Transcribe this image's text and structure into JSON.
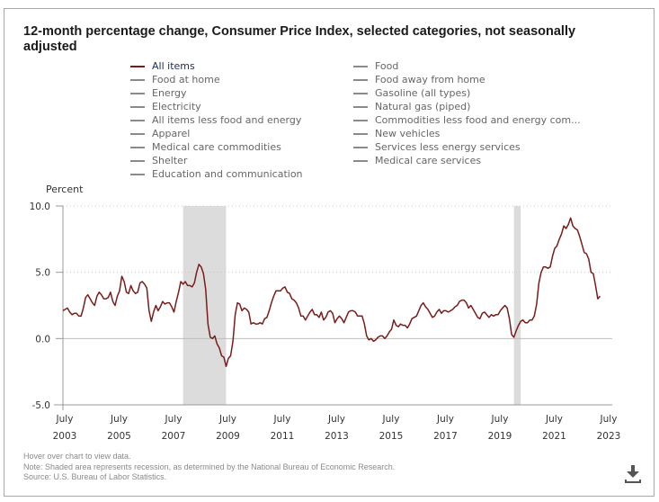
{
  "title": "12-month percentage change, Consumer Price Index, selected categories, not seasonally adjusted",
  "legend": {
    "left": [
      {
        "label": "All items",
        "active": true
      },
      {
        "label": "Food at home",
        "active": false
      },
      {
        "label": "Energy",
        "active": false
      },
      {
        "label": "Electricity",
        "active": false
      },
      {
        "label": "All items less food and energy",
        "active": false
      },
      {
        "label": "Apparel",
        "active": false
      },
      {
        "label": "Medical care commodities",
        "active": false
      },
      {
        "label": "Shelter",
        "active": false
      },
      {
        "label": "Education and communication",
        "active": false
      }
    ],
    "right": [
      {
        "label": "Food",
        "active": false
      },
      {
        "label": "Food away from home",
        "active": false
      },
      {
        "label": "Gasoline (all types)",
        "active": false
      },
      {
        "label": "Natural gas (piped)",
        "active": false
      },
      {
        "label": "Commodities less food and energy com...",
        "active": false
      },
      {
        "label": "New vehicles",
        "active": false
      },
      {
        "label": "Services less energy services",
        "active": false
      },
      {
        "label": "Medical care services",
        "active": false
      }
    ]
  },
  "footer": {
    "hover_note": "Hover over chart to view data.",
    "recession_note": "Note: Shaded area represents recession, as determined by the National Bureau of Economic Research.",
    "source": "Source: U.S. Bureau of Labor Statistics."
  },
  "download_icon": "download-icon",
  "colors": {
    "series": "#7a1c1c",
    "recession": "#dcdcdc",
    "legend_inactive": "#8a8a8a"
  },
  "chart_data": {
    "type": "line",
    "title": "12-month percentage change, Consumer Price Index, selected categories, not seasonally adjusted",
    "ylabel": "Percent",
    "xlabel": "",
    "ylim": [
      -5.0,
      10.0
    ],
    "yticks": [
      "10.0",
      "5.0",
      "0.0",
      "-5.0"
    ],
    "ytick_values": [
      10,
      5,
      0,
      -5
    ],
    "xticks": [
      {
        "month": "July",
        "year": "2003"
      },
      {
        "month": "July",
        "year": "2005"
      },
      {
        "month": "July",
        "year": "2007"
      },
      {
        "month": "July",
        "year": "2009"
      },
      {
        "month": "July",
        "year": "2011"
      },
      {
        "month": "July",
        "year": "2013"
      },
      {
        "month": "July",
        "year": "2015"
      },
      {
        "month": "July",
        "year": "2017"
      },
      {
        "month": "July",
        "year": "2019"
      },
      {
        "month": "July",
        "year": "2021"
      },
      {
        "month": "July",
        "year": "2023"
      }
    ],
    "x_start": "2003-07",
    "x_end": "2023-07",
    "grid": "horizontal dotted",
    "legend_position": "top",
    "recessions": [
      {
        "start": "2007-12",
        "end": "2009-06"
      },
      {
        "start": "2020-02",
        "end": "2020-04"
      }
    ],
    "series": [
      {
        "name": "All items",
        "start": "2003-07",
        "frequency": "monthly",
        "values": [
          2.1,
          2.2,
          2.3,
          2.0,
          1.8,
          1.9,
          1.9,
          1.7,
          1.7,
          2.3,
          3.1,
          3.3,
          3.0,
          2.7,
          2.5,
          3.2,
          3.5,
          3.3,
          3.0,
          3.0,
          3.1,
          3.5,
          2.8,
          2.5,
          3.2,
          3.6,
          4.7,
          4.3,
          3.5,
          3.4,
          4.0,
          3.6,
          3.4,
          3.5,
          4.2,
          4.3,
          4.1,
          3.8,
          2.1,
          1.3,
          2.0,
          2.5,
          2.1,
          2.4,
          2.8,
          2.6,
          2.7,
          2.7,
          2.4,
          2.0,
          2.8,
          3.5,
          4.3,
          4.1,
          4.3,
          4.0,
          4.0,
          3.9,
          4.2,
          5.0,
          5.6,
          5.4,
          4.9,
          3.7,
          1.1,
          0.1,
          0.0,
          0.2,
          -0.4,
          -0.7,
          -1.3,
          -1.4,
          -2.1,
          -1.5,
          -1.3,
          -0.2,
          1.8,
          2.7,
          2.6,
          2.1,
          2.3,
          2.2,
          2.0,
          1.1,
          1.2,
          1.1,
          1.1,
          1.2,
          1.1,
          1.5,
          1.6,
          2.1,
          2.7,
          3.2,
          3.6,
          3.6,
          3.6,
          3.8,
          3.9,
          3.5,
          3.4,
          3.0,
          2.9,
          2.7,
          2.3,
          1.7,
          1.7,
          1.4,
          1.7,
          2.0,
          2.2,
          1.8,
          1.8,
          1.6,
          2.0,
          1.4,
          1.6,
          2.0,
          2.1,
          1.9,
          1.2,
          1.5,
          1.7,
          1.5,
          1.2,
          1.6,
          2.0,
          2.1,
          2.1,
          2.0,
          1.7,
          1.7,
          1.7,
          1.1,
          0.2,
          -0.1,
          0.0,
          -0.2,
          -0.1,
          0.1,
          0.2,
          0.2,
          0.0,
          0.2,
          0.5,
          0.7,
          1.4,
          1.0,
          0.9,
          1.1,
          1.0,
          1.0,
          0.8,
          1.1,
          1.5,
          1.6,
          1.7,
          2.1,
          2.5,
          2.7,
          2.4,
          2.2,
          1.9,
          1.6,
          1.7,
          2.0,
          2.2,
          1.9,
          2.1,
          2.1,
          2.0,
          2.1,
          2.2,
          2.4,
          2.5,
          2.8,
          2.9,
          2.9,
          2.7,
          2.3,
          2.5,
          2.2,
          1.9,
          1.6,
          1.5,
          1.9,
          2.0,
          1.8,
          1.6,
          1.8,
          1.7,
          1.8,
          1.8,
          2.1,
          2.3,
          2.5,
          2.3,
          1.5,
          0.3,
          0.1,
          0.6,
          1.0,
          1.3,
          1.4,
          1.2,
          1.2,
          1.4,
          1.4,
          1.7,
          2.6,
          4.2,
          5.0,
          5.4,
          5.4,
          5.3,
          5.4,
          6.2,
          6.8,
          7.0,
          7.5,
          7.9,
          8.5,
          8.3,
          8.6,
          9.1,
          8.5,
          8.3,
          8.2,
          7.7,
          7.1,
          6.5,
          6.4,
          6.0,
          5.0,
          4.9,
          4.0,
          3.0,
          3.2
        ]
      }
    ]
  }
}
